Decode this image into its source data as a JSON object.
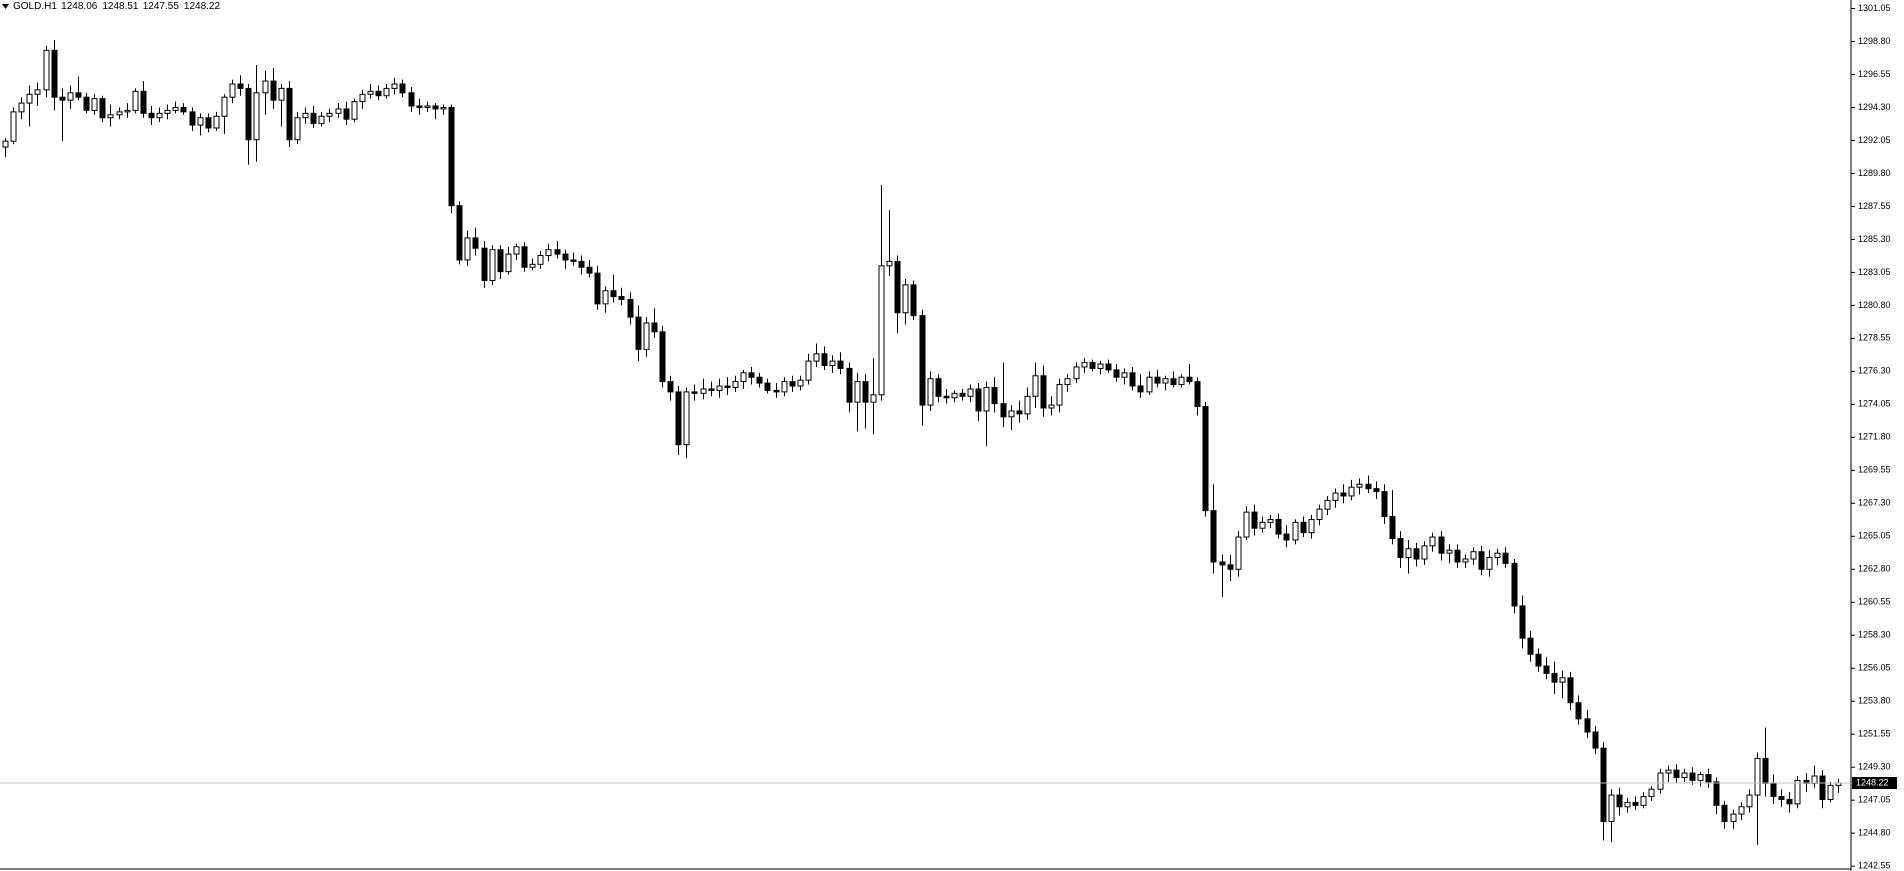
{
  "chart_data": {
    "type": "candlestick",
    "symbol": "GOLD.H1",
    "ylim": [
      1242.22,
      1301.63
    ],
    "yticks": [
      1301.05,
      {
        "value": 1298.8,
        "label": "1298.80"
      },
      1296.55,
      {
        "value": 1294.3,
        "label": "1294.30"
      },
      1292.05,
      {
        "value": 1289.8,
        "label": "1289.80"
      },
      1287.55,
      {
        "value": 1285.3,
        "label": "1285.30"
      },
      1283.05,
      {
        "value": 1280.8,
        "label": "1280.80"
      },
      1278.55,
      {
        "value": 1276.3,
        "label": "1276.30"
      },
      1274.05,
      {
        "value": 1271.8,
        "label": "1271.80"
      },
      1269.55,
      {
        "value": 1267.3,
        "label": "1267.30"
      },
      1265.05,
      {
        "value": 1262.8,
        "label": "1262.80"
      },
      1260.55,
      {
        "value": 1258.3,
        "label": "1258.30"
      },
      1256.05,
      {
        "value": 1253.8,
        "label": "1253.80"
      },
      1251.55,
      {
        "value": 1249.3,
        "label": "1249.30"
      },
      1247.05,
      {
        "value": 1244.8,
        "label": "1244.80"
      },
      1242.55
    ],
    "up_color": "#ffffff",
    "down_color": "#000000",
    "outline_color": "#000000",
    "price_line_color": "#c0c0c0",
    "ohlc": [
      [
        1291.6,
        1292.2,
        1290.9,
        1292.0
      ],
      [
        1292.0,
        1294.3,
        1291.8,
        1294.0
      ],
      [
        1294.0,
        1295.0,
        1293.5,
        1294.6
      ],
      [
        1294.6,
        1295.8,
        1293.0,
        1295.2
      ],
      [
        1295.2,
        1296.0,
        1294.4,
        1295.5
      ],
      [
        1295.5,
        1298.5,
        1295.0,
        1298.2
      ],
      [
        1298.2,
        1298.9,
        1294.1,
        1295.0
      ],
      [
        1295.0,
        1295.6,
        1292.0,
        1294.8
      ],
      [
        1294.8,
        1295.8,
        1294.2,
        1295.3
      ],
      [
        1295.3,
        1296.4,
        1294.8,
        1295.0
      ],
      [
        1295.0,
        1295.3,
        1293.9,
        1294.1
      ],
      [
        1294.1,
        1295.2,
        1293.8,
        1294.9
      ],
      [
        1294.9,
        1295.1,
        1293.3,
        1293.6
      ],
      [
        1293.6,
        1294.5,
        1293.0,
        1293.8
      ],
      [
        1293.8,
        1294.3,
        1293.5,
        1294.0
      ],
      [
        1294.0,
        1294.6,
        1293.6,
        1294.1
      ],
      [
        1294.1,
        1295.6,
        1293.9,
        1295.4
      ],
      [
        1295.4,
        1296.1,
        1293.6,
        1293.9
      ],
      [
        1293.9,
        1294.4,
        1293.1,
        1293.6
      ],
      [
        1293.6,
        1294.3,
        1293.3,
        1293.9
      ],
      [
        1293.9,
        1294.5,
        1293.5,
        1294.1
      ],
      [
        1294.1,
        1294.7,
        1293.9,
        1294.3
      ],
      [
        1294.3,
        1294.6,
        1293.8,
        1294.0
      ],
      [
        1294.0,
        1294.3,
        1292.7,
        1293.1
      ],
      [
        1293.1,
        1293.9,
        1292.4,
        1293.6
      ],
      [
        1293.6,
        1293.9,
        1292.6,
        1292.9
      ],
      [
        1292.9,
        1294.0,
        1292.7,
        1293.7
      ],
      [
        1293.7,
        1295.2,
        1292.5,
        1295.0
      ],
      [
        1295.0,
        1296.2,
        1294.6,
        1295.9
      ],
      [
        1295.9,
        1296.5,
        1295.1,
        1295.6
      ],
      [
        1295.6,
        1295.9,
        1290.4,
        1292.1
      ],
      [
        1292.1,
        1297.2,
        1290.6,
        1295.3
      ],
      [
        1295.3,
        1296.8,
        1293.8,
        1296.1
      ],
      [
        1296.1,
        1297.0,
        1294.2,
        1294.8
      ],
      [
        1294.8,
        1295.9,
        1293.0,
        1295.6
      ],
      [
        1295.6,
        1296.1,
        1291.6,
        1292.1
      ],
      [
        1292.1,
        1294.0,
        1291.8,
        1293.6
      ],
      [
        1293.6,
        1294.3,
        1293.2,
        1293.9
      ],
      [
        1293.9,
        1294.4,
        1292.9,
        1293.2
      ],
      [
        1293.2,
        1294.0,
        1293.0,
        1293.7
      ],
      [
        1293.7,
        1294.2,
        1293.3,
        1293.9
      ],
      [
        1293.9,
        1294.6,
        1293.6,
        1294.2
      ],
      [
        1294.2,
        1294.7,
        1293.1,
        1293.5
      ],
      [
        1293.5,
        1294.9,
        1293.3,
        1294.7
      ],
      [
        1294.7,
        1295.5,
        1294.2,
        1295.2
      ],
      [
        1295.2,
        1295.9,
        1294.9,
        1295.4
      ],
      [
        1295.4,
        1295.8,
        1294.8,
        1295.1
      ],
      [
        1295.1,
        1295.9,
        1294.9,
        1295.6
      ],
      [
        1295.6,
        1296.3,
        1295.2,
        1295.9
      ],
      [
        1295.9,
        1296.2,
        1295.0,
        1295.3
      ],
      [
        1295.3,
        1295.7,
        1294.0,
        1294.4
      ],
      [
        1294.4,
        1294.9,
        1293.8,
        1294.3
      ],
      [
        1294.3,
        1294.7,
        1294.0,
        1294.4
      ],
      [
        1294.4,
        1294.6,
        1293.5,
        1294.2
      ],
      [
        1294.2,
        1294.5,
        1293.8,
        1294.3
      ],
      [
        1294.3,
        1294.5,
        1287.1,
        1287.6
      ],
      [
        1287.6,
        1287.9,
        1283.6,
        1283.9
      ],
      [
        1283.9,
        1285.9,
        1283.5,
        1285.4
      ],
      [
        1285.4,
        1286.1,
        1284.2,
        1284.7
      ],
      [
        1284.7,
        1285.2,
        1282.0,
        1282.5
      ],
      [
        1282.5,
        1284.9,
        1282.2,
        1284.6
      ],
      [
        1284.6,
        1284.9,
        1282.6,
        1283.1
      ],
      [
        1283.1,
        1284.8,
        1282.9,
        1284.3
      ],
      [
        1284.3,
        1285.0,
        1283.9,
        1284.8
      ],
      [
        1284.8,
        1285.1,
        1283.1,
        1283.4
      ],
      [
        1283.4,
        1284.0,
        1283.2,
        1283.6
      ],
      [
        1283.6,
        1284.5,
        1283.3,
        1284.2
      ],
      [
        1284.2,
        1285.0,
        1283.8,
        1284.6
      ],
      [
        1284.6,
        1285.2,
        1284.0,
        1284.3
      ],
      [
        1284.3,
        1284.6,
        1283.3,
        1283.9
      ],
      [
        1283.9,
        1284.4,
        1283.5,
        1283.8
      ],
      [
        1283.8,
        1284.2,
        1282.9,
        1283.4
      ],
      [
        1283.4,
        1283.9,
        1282.7,
        1283.0
      ],
      [
        1283.0,
        1283.5,
        1280.5,
        1280.9
      ],
      [
        1280.9,
        1282.1,
        1280.3,
        1281.8
      ],
      [
        1281.8,
        1282.9,
        1281.0,
        1281.4
      ],
      [
        1281.4,
        1282.0,
        1280.8,
        1281.2
      ],
      [
        1281.2,
        1281.7,
        1279.5,
        1280.0
      ],
      [
        1280.0,
        1280.8,
        1277.0,
        1277.8
      ],
      [
        1277.8,
        1280.0,
        1277.3,
        1279.6
      ],
      [
        1279.6,
        1280.6,
        1278.6,
        1279.0
      ],
      [
        1279.0,
        1279.4,
        1275.2,
        1275.6
      ],
      [
        1275.6,
        1276.0,
        1274.3,
        1274.9
      ],
      [
        1274.9,
        1275.3,
        1270.6,
        1271.3
      ],
      [
        1271.3,
        1275.2,
        1270.4,
        1274.9
      ],
      [
        1274.9,
        1275.4,
        1274.3,
        1274.8
      ],
      [
        1274.8,
        1275.8,
        1274.4,
        1275.1
      ],
      [
        1275.1,
        1275.6,
        1274.6,
        1275.0
      ],
      [
        1275.0,
        1275.8,
        1274.5,
        1275.3
      ],
      [
        1275.3,
        1275.9,
        1274.7,
        1275.2
      ],
      [
        1275.2,
        1276.0,
        1274.9,
        1275.6
      ],
      [
        1275.6,
        1276.4,
        1275.1,
        1276.2
      ],
      [
        1276.2,
        1276.6,
        1275.4,
        1275.9
      ],
      [
        1275.9,
        1276.2,
        1275.2,
        1275.5
      ],
      [
        1275.5,
        1275.8,
        1274.8,
        1275.0
      ],
      [
        1275.0,
        1275.5,
        1274.5,
        1274.9
      ],
      [
        1274.9,
        1275.9,
        1274.6,
        1275.6
      ],
      [
        1275.6,
        1276.0,
        1274.9,
        1275.3
      ],
      [
        1275.3,
        1276.0,
        1275.0,
        1275.7
      ],
      [
        1275.7,
        1277.5,
        1275.4,
        1277.0
      ],
      [
        1277.0,
        1278.2,
        1276.6,
        1277.5
      ],
      [
        1277.5,
        1278.0,
        1276.4,
        1276.7
      ],
      [
        1276.7,
        1277.4,
        1276.2,
        1277.0
      ],
      [
        1277.0,
        1277.6,
        1276.1,
        1276.5
      ],
      [
        1276.5,
        1276.9,
        1273.5,
        1274.2
      ],
      [
        1274.2,
        1276.2,
        1272.2,
        1275.6
      ],
      [
        1275.6,
        1276.1,
        1272.4,
        1274.2
      ],
      [
        1274.2,
        1277.2,
        1272.0,
        1274.7
      ],
      [
        1274.7,
        1289.0,
        1274.3,
        1283.5
      ],
      [
        1283.5,
        1287.3,
        1282.8,
        1283.8
      ],
      [
        1283.8,
        1284.2,
        1278.9,
        1280.3
      ],
      [
        1280.3,
        1282.6,
        1279.5,
        1282.2
      ],
      [
        1282.2,
        1282.5,
        1279.8,
        1280.1
      ],
      [
        1280.1,
        1280.5,
        1272.6,
        1274.0
      ],
      [
        1274.0,
        1276.3,
        1273.6,
        1275.8
      ],
      [
        1275.8,
        1276.1,
        1274.2,
        1274.6
      ],
      [
        1274.6,
        1275.1,
        1274.1,
        1274.5
      ],
      [
        1274.5,
        1275.0,
        1274.2,
        1274.8
      ],
      [
        1274.8,
        1275.1,
        1274.3,
        1274.6
      ],
      [
        1274.6,
        1275.4,
        1274.2,
        1275.1
      ],
      [
        1275.1,
        1275.5,
        1272.9,
        1273.6
      ],
      [
        1273.6,
        1275.6,
        1271.2,
        1275.2
      ],
      [
        1275.2,
        1275.9,
        1273.5,
        1274.1
      ],
      [
        1274.1,
        1276.9,
        1272.5,
        1273.2
      ],
      [
        1273.2,
        1274.0,
        1272.3,
        1273.6
      ],
      [
        1273.6,
        1274.3,
        1272.8,
        1273.4
      ],
      [
        1273.4,
        1275.2,
        1273.0,
        1274.6
      ],
      [
        1274.6,
        1276.9,
        1273.8,
        1276.0
      ],
      [
        1276.0,
        1276.7,
        1273.2,
        1273.8
      ],
      [
        1273.8,
        1274.6,
        1273.3,
        1274.0
      ],
      [
        1274.0,
        1275.8,
        1273.5,
        1275.4
      ],
      [
        1275.4,
        1276.1,
        1274.9,
        1275.8
      ],
      [
        1275.8,
        1276.9,
        1275.5,
        1276.6
      ],
      [
        1276.6,
        1277.2,
        1276.2,
        1276.9
      ],
      [
        1276.9,
        1277.1,
        1276.3,
        1276.5
      ],
      [
        1276.5,
        1277.0,
        1276.1,
        1276.8
      ],
      [
        1276.8,
        1277.1,
        1276.2,
        1276.4
      ],
      [
        1276.4,
        1276.8,
        1275.6,
        1275.9
      ],
      [
        1275.9,
        1276.5,
        1275.4,
        1276.2
      ],
      [
        1276.2,
        1276.6,
        1275.0,
        1275.3
      ],
      [
        1275.3,
        1276.1,
        1274.5,
        1274.9
      ],
      [
        1274.9,
        1276.3,
        1274.7,
        1275.9
      ],
      [
        1275.9,
        1276.4,
        1275.2,
        1275.5
      ],
      [
        1275.5,
        1276.0,
        1275.0,
        1275.8
      ],
      [
        1275.8,
        1276.3,
        1275.2,
        1275.4
      ],
      [
        1275.4,
        1276.1,
        1275.2,
        1275.9
      ],
      [
        1275.9,
        1276.8,
        1275.4,
        1275.6
      ],
      [
        1275.6,
        1275.9,
        1273.3,
        1273.9
      ],
      [
        1273.9,
        1274.2,
        1266.4,
        1266.8
      ],
      [
        1266.8,
        1268.6,
        1262.5,
        1263.3
      ],
      [
        1263.3,
        1263.8,
        1260.9,
        1263.1
      ],
      [
        1263.1,
        1263.8,
        1262.0,
        1262.8
      ],
      [
        1262.8,
        1265.4,
        1262.3,
        1265.0
      ],
      [
        1265.0,
        1267.1,
        1264.8,
        1266.7
      ],
      [
        1266.7,
        1267.2,
        1265.1,
        1265.6
      ],
      [
        1265.6,
        1266.4,
        1265.3,
        1266.0
      ],
      [
        1266.0,
        1266.5,
        1265.6,
        1266.2
      ],
      [
        1266.2,
        1266.6,
        1264.9,
        1265.2
      ],
      [
        1265.2,
        1265.8,
        1264.3,
        1264.8
      ],
      [
        1264.8,
        1266.2,
        1264.5,
        1266.0
      ],
      [
        1266.0,
        1266.4,
        1265.0,
        1265.3
      ],
      [
        1265.3,
        1266.5,
        1264.9,
        1266.2
      ],
      [
        1266.2,
        1267.2,
        1265.8,
        1266.9
      ],
      [
        1266.9,
        1267.8,
        1266.5,
        1267.5
      ],
      [
        1267.5,
        1268.3,
        1267.0,
        1268.0
      ],
      [
        1268.0,
        1268.6,
        1267.3,
        1267.8
      ],
      [
        1267.8,
        1268.9,
        1267.5,
        1268.4
      ],
      [
        1268.4,
        1269.0,
        1267.9,
        1268.6
      ],
      [
        1268.6,
        1269.2,
        1268.0,
        1268.3
      ],
      [
        1268.3,
        1268.8,
        1267.6,
        1268.1
      ],
      [
        1268.1,
        1268.6,
        1265.9,
        1266.4
      ],
      [
        1266.4,
        1268.2,
        1264.5,
        1264.9
      ],
      [
        1264.9,
        1265.4,
        1262.9,
        1263.6
      ],
      [
        1263.6,
        1264.8,
        1262.5,
        1264.2
      ],
      [
        1264.2,
        1264.6,
        1263.0,
        1263.5
      ],
      [
        1263.5,
        1264.7,
        1263.1,
        1264.4
      ],
      [
        1264.4,
        1265.3,
        1264.0,
        1265.0
      ],
      [
        1265.0,
        1265.4,
        1263.4,
        1263.9
      ],
      [
        1263.9,
        1264.5,
        1263.2,
        1264.1
      ],
      [
        1264.1,
        1264.5,
        1262.9,
        1263.3
      ],
      [
        1263.3,
        1263.8,
        1262.9,
        1263.5
      ],
      [
        1263.5,
        1264.3,
        1263.1,
        1264.0
      ],
      [
        1264.0,
        1264.4,
        1262.4,
        1262.8
      ],
      [
        1262.8,
        1264.1,
        1262.3,
        1263.6
      ],
      [
        1263.6,
        1264.2,
        1263.1,
        1263.9
      ],
      [
        1263.9,
        1264.3,
        1262.9,
        1263.2
      ],
      [
        1263.2,
        1263.5,
        1259.8,
        1260.3
      ],
      [
        1260.3,
        1261.0,
        1257.4,
        1258.1
      ],
      [
        1258.1,
        1258.6,
        1256.5,
        1257.0
      ],
      [
        1257.0,
        1257.4,
        1255.8,
        1256.2
      ],
      [
        1256.2,
        1256.8,
        1255.3,
        1255.7
      ],
      [
        1255.7,
        1256.5,
        1254.3,
        1255.1
      ],
      [
        1255.1,
        1255.9,
        1254.0,
        1255.4
      ],
      [
        1255.4,
        1255.8,
        1253.2,
        1253.7
      ],
      [
        1253.7,
        1254.2,
        1252.2,
        1252.6
      ],
      [
        1252.6,
        1253.2,
        1251.3,
        1251.7
      ],
      [
        1251.7,
        1252.1,
        1250.2,
        1250.6
      ],
      [
        1250.6,
        1251.0,
        1244.3,
        1245.6
      ],
      [
        1245.6,
        1247.8,
        1244.2,
        1247.4
      ],
      [
        1247.4,
        1247.9,
        1246.0,
        1246.6
      ],
      [
        1246.6,
        1247.2,
        1246.2,
        1246.9
      ],
      [
        1246.9,
        1247.3,
        1246.4,
        1246.7
      ],
      [
        1246.7,
        1247.6,
        1246.5,
        1247.3
      ],
      [
        1247.3,
        1248.0,
        1247.0,
        1247.8
      ],
      [
        1247.8,
        1249.2,
        1247.5,
        1248.9
      ],
      [
        1248.9,
        1249.4,
        1248.3,
        1249.1
      ],
      [
        1249.1,
        1249.5,
        1248.2,
        1248.6
      ],
      [
        1248.6,
        1249.2,
        1248.3,
        1248.9
      ],
      [
        1248.9,
        1249.3,
        1248.1,
        1248.4
      ],
      [
        1248.4,
        1249.0,
        1248.0,
        1248.8
      ],
      [
        1248.8,
        1249.2,
        1247.9,
        1248.3
      ],
      [
        1248.3,
        1248.6,
        1246.1,
        1246.7
      ],
      [
        1246.7,
        1247.0,
        1245.1,
        1245.6
      ],
      [
        1245.6,
        1246.4,
        1245.1,
        1246.1
      ],
      [
        1246.1,
        1246.9,
        1245.7,
        1246.6
      ],
      [
        1246.6,
        1247.8,
        1246.2,
        1247.4
      ],
      [
        1247.4,
        1250.3,
        1244.0,
        1249.9
      ],
      [
        1249.9,
        1252.0,
        1247.3,
        1248.2
      ],
      [
        1248.2,
        1248.8,
        1246.8,
        1247.3
      ],
      [
        1247.3,
        1247.8,
        1246.6,
        1247.1
      ],
      [
        1247.1,
        1247.6,
        1246.2,
        1246.8
      ],
      [
        1246.8,
        1248.7,
        1246.5,
        1248.4
      ],
      [
        1248.4,
        1248.9,
        1247.6,
        1248.2
      ],
      [
        1248.2,
        1249.4,
        1247.9,
        1248.7
      ],
      [
        1248.7,
        1249.1,
        1246.5,
        1247.1
      ],
      [
        1247.1,
        1248.3,
        1246.9,
        1248.06
      ],
      [
        1248.06,
        1248.51,
        1247.55,
        1248.22
      ]
    ]
  }
}
